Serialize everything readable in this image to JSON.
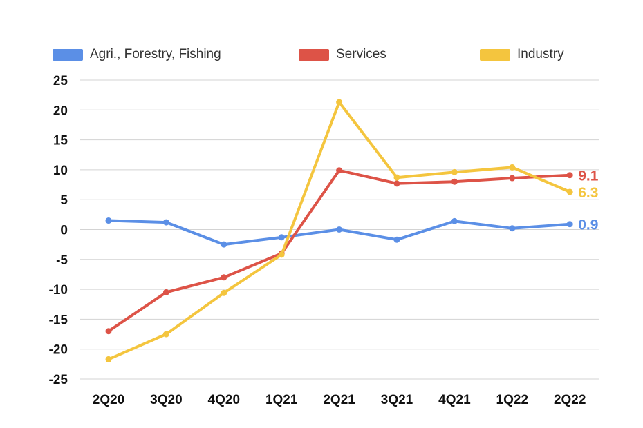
{
  "chart_data": {
    "type": "line",
    "categories": [
      "2Q20",
      "3Q20",
      "4Q20",
      "1Q21",
      "2Q21",
      "3Q21",
      "4Q21",
      "1Q22",
      "2Q22"
    ],
    "ylim": [
      -25,
      25
    ],
    "yticks": [
      25,
      20,
      15,
      10,
      5,
      0,
      -5,
      -10,
      -15,
      -20,
      -25
    ],
    "grid": true,
    "legend_position": "top",
    "series": [
      {
        "name": "Agri., Forestry, Fishing",
        "color": "#5b8fe6",
        "values": [
          1.5,
          1.2,
          -2.5,
          -1.3,
          0.0,
          -1.7,
          1.4,
          0.2,
          0.9
        ],
        "end_label": "0.9"
      },
      {
        "name": "Services",
        "color": "#dd5347",
        "values": [
          -17.0,
          -10.5,
          -8.0,
          -4.0,
          9.9,
          7.7,
          8.0,
          8.6,
          9.1
        ],
        "end_label": "9.1"
      },
      {
        "name": "Industry",
        "color": "#f4c53e",
        "values": [
          -21.7,
          -17.5,
          -10.6,
          -4.2,
          21.3,
          8.7,
          9.6,
          10.4,
          6.3
        ],
        "end_label": "6.3"
      }
    ]
  }
}
